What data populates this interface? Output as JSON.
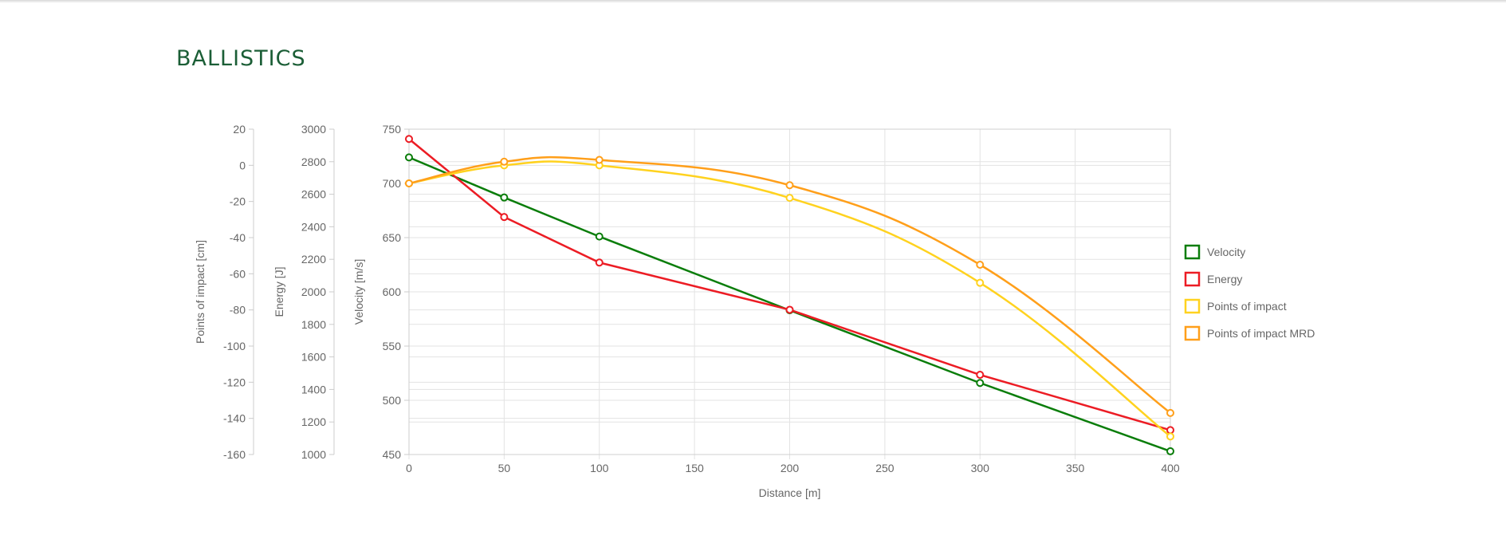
{
  "page": {
    "title": "BALLISTICS"
  },
  "colors": {
    "title": "#1b5e36",
    "velocity": "#0a7d0a",
    "energy": "#ec1c24",
    "points_of_impact": "#ffd21f",
    "points_of_impact_mrd": "#ff9f1a"
  },
  "chart_data": {
    "type": "line",
    "xlabel": "Distance [m]",
    "x_ticks": [
      "0",
      "50",
      "100",
      "150",
      "200",
      "250",
      "300",
      "350",
      "400"
    ],
    "xlim": [
      0,
      400
    ],
    "grid": true,
    "legend_position": "right",
    "axes": [
      {
        "id": "poi",
        "label": "Points of impact [cm]",
        "range": [
          -160,
          20
        ],
        "ticks": [
          "20",
          "0",
          "-20",
          "-40",
          "-60",
          "-80",
          "-100",
          "-120",
          "-140",
          "-160"
        ]
      },
      {
        "id": "energy",
        "label": "Energy [J]",
        "range": [
          1000,
          3000
        ],
        "ticks": [
          "3000",
          "2800",
          "2600",
          "2400",
          "2200",
          "2000",
          "1800",
          "1600",
          "1400",
          "1200",
          "1000"
        ]
      },
      {
        "id": "velocity",
        "label": "Velocity [m/s]",
        "range": [
          450,
          750
        ],
        "ticks": [
          "750",
          "700",
          "650",
          "600",
          "550",
          "500",
          "450"
        ]
      }
    ],
    "series": [
      {
        "name": "Velocity",
        "axis": "velocity",
        "color": "#0a7d0a",
        "smooth": false,
        "x": [
          0,
          50,
          100,
          200,
          300,
          400
        ],
        "y": [
          724,
          687,
          651,
          583,
          516,
          453
        ]
      },
      {
        "name": "Energy",
        "axis": "energy",
        "color": "#ec1c24",
        "smooth": false,
        "x": [
          0,
          50,
          100,
          200,
          300,
          400
        ],
        "y": [
          2940,
          2460,
          2180,
          1890,
          1490,
          1150
        ]
      },
      {
        "name": "Points of impact",
        "axis": "poi",
        "color": "#ffd21f",
        "smooth": true,
        "x": [
          0,
          50,
          100,
          200,
          300,
          400
        ],
        "y": [
          -10,
          0,
          0,
          -18,
          -65,
          -150
        ]
      },
      {
        "name": "Points of impact MRD",
        "axis": "poi",
        "color": "#ff9f1a",
        "smooth": true,
        "x": [
          0,
          50,
          100,
          200,
          300,
          400
        ],
        "y": [
          -10,
          2,
          3,
          -11,
          -55,
          -137
        ]
      }
    ]
  }
}
